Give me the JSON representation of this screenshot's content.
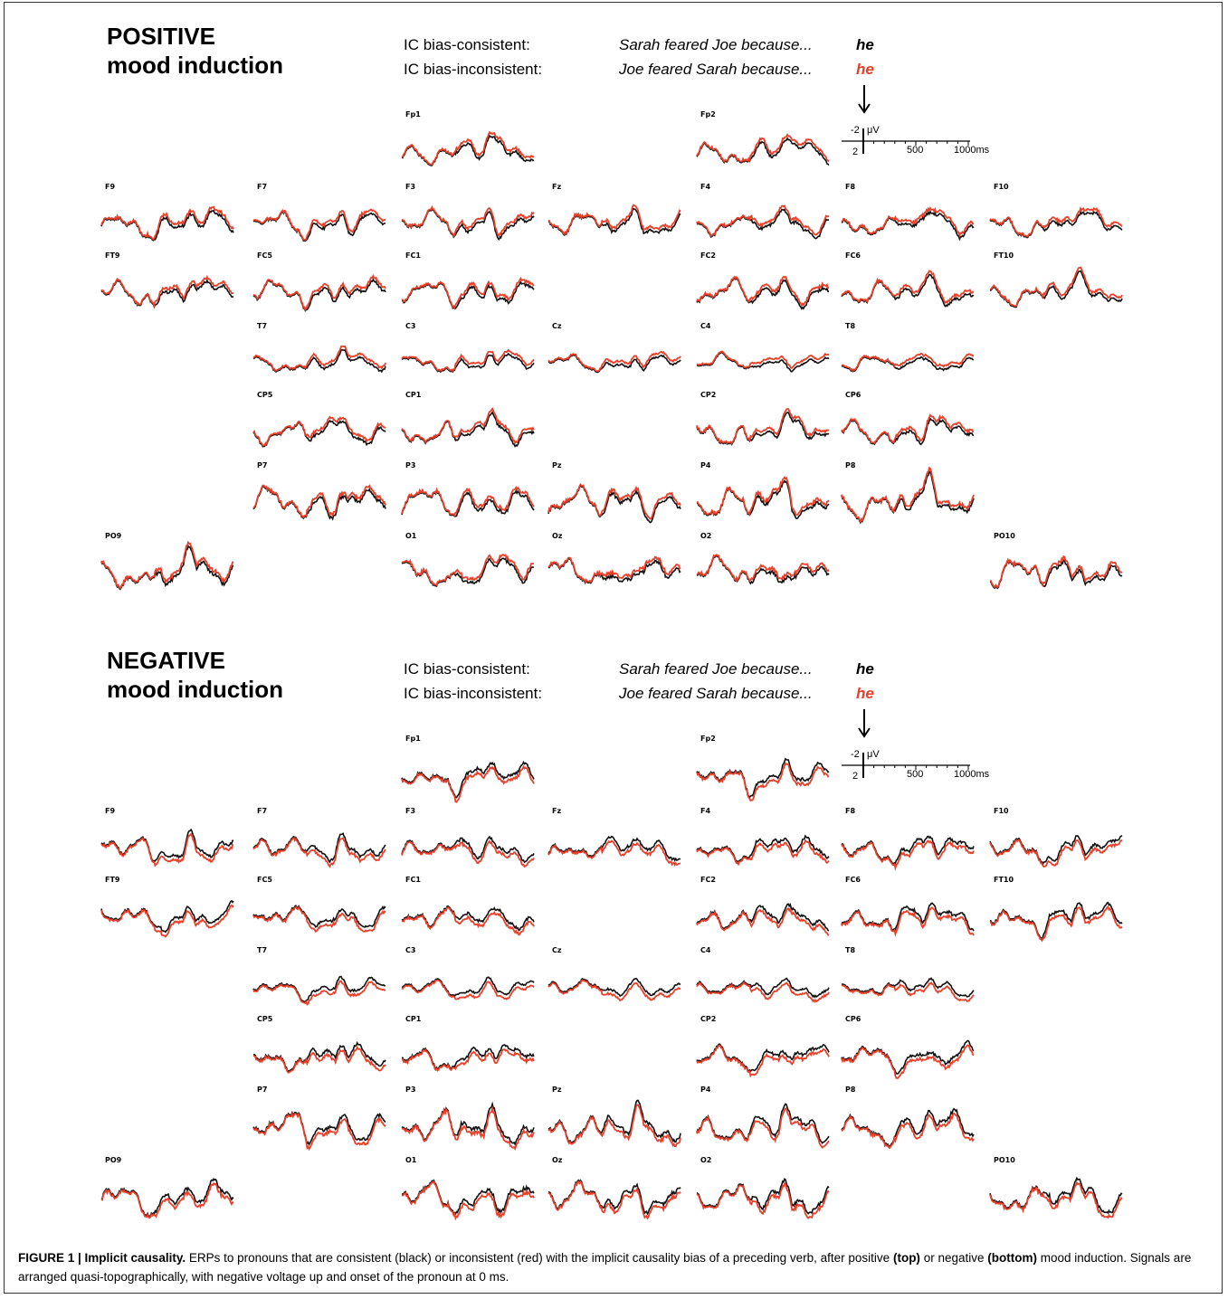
{
  "panels": [
    {
      "id": "positive",
      "mood_line1": "POSITIVE",
      "mood_line2": "mood induction",
      "cond_consistent_label": "IC bias-consistent:",
      "cond_inconsistent_label": "IC bias-inconsistent:",
      "cond_consistent_sentence": "Sarah feared Joe because...",
      "cond_inconsistent_sentence": "Joe feared Sarah because...",
      "pronoun_consistent": "he",
      "pronoun_inconsistent": "he"
    },
    {
      "id": "negative",
      "mood_line1": "NEGATIVE",
      "mood_line2": "mood induction",
      "cond_consistent_label": "IC bias-consistent:",
      "cond_inconsistent_label": "IC bias-inconsistent:",
      "cond_consistent_sentence": "Sarah feared Joe because...",
      "cond_inconsistent_sentence": "Joe feared Sarah because...",
      "pronoun_consistent": "he",
      "pronoun_inconsistent": "he"
    }
  ],
  "scalebar": {
    "neg": "-2",
    "unit": "μV",
    "pos": "2",
    "t500": "500",
    "t1000": "1000ms"
  },
  "electrodes": [
    "Fp1",
    "Fp2",
    "F9",
    "F7",
    "F3",
    "Fz",
    "F4",
    "F8",
    "F10",
    "FT9",
    "FC5",
    "FC1",
    "FC2",
    "FC6",
    "FT10",
    "T7",
    "C3",
    "Cz",
    "C4",
    "T8",
    "CP5",
    "CP1",
    "CP2",
    "CP6",
    "P7",
    "P3",
    "Pz",
    "P4",
    "P8",
    "PO9",
    "O1",
    "Oz",
    "O2",
    "PO10"
  ],
  "colors": {
    "consistent": "#111111",
    "inconsistent": "#e8402a"
  },
  "caption": {
    "label": "FIGURE 1 | Implicit causality.",
    "text1": " ERPs to pronouns that are consistent (black) or inconsistent (red) with the implicit causality bias of a preceding verb, after positive ",
    "top": "(top)",
    "text2": " or negative ",
    "bottom": "(bottom)",
    "text3": " mood induction. Signals are arranged quasi-topographically, with negative voltage up and onset of the pronoun at 0 ms."
  }
}
